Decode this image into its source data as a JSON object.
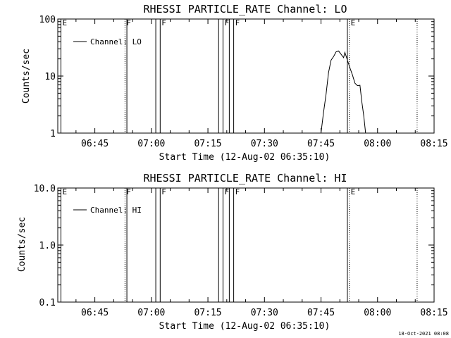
{
  "page": {
    "timestamp": "18-Oct-2021 08:08"
  },
  "chart_data": [
    {
      "type": "line",
      "title": "RHESSI PARTICLE_RATE Channel: LO",
      "xlabel": "Start Time (12-Aug-02 06:35:10)",
      "ylabel": "Counts/sec",
      "xscale": "time",
      "xlim": [
        "06:35:10",
        "08:15:00"
      ],
      "x_ticks": [
        "06:45",
        "07:00",
        "07:15",
        "07:30",
        "07:45",
        "08:00",
        "08:15"
      ],
      "yscale": "log",
      "ylim": [
        1,
        100
      ],
      "y_ticks": [
        {
          "value": 1,
          "label": "1"
        },
        {
          "value": 10,
          "label": "10"
        },
        {
          "value": 100,
          "label": "100"
        }
      ],
      "legend": {
        "placement": "top-left",
        "entries": [
          "Channel: LO"
        ]
      },
      "grid": false,
      "markers": [
        {
          "time": "06:36:00",
          "label": "E",
          "style": "solid"
        },
        {
          "time": "06:53:00",
          "label": "F",
          "style": "dotted"
        },
        {
          "time": "06:53:30",
          "label": "",
          "style": "solid"
        },
        {
          "time": "07:01:10",
          "label": "",
          "style": "solid"
        },
        {
          "time": "07:02:20",
          "label": "F",
          "style": "solid"
        },
        {
          "time": "07:17:50",
          "label": "",
          "style": "solid"
        },
        {
          "time": "07:19:00",
          "label": "F",
          "style": "solid"
        },
        {
          "time": "07:20:40",
          "label": "",
          "style": "solid"
        },
        {
          "time": "07:21:50",
          "label": "F",
          "style": "solid"
        },
        {
          "time": "07:52:00",
          "label": "",
          "style": "solid"
        },
        {
          "time": "07:52:30",
          "label": "E",
          "style": "dotted"
        },
        {
          "time": "08:10:30",
          "label": "",
          "style": "dotted"
        }
      ],
      "series": [
        {
          "name": "Channel: LO",
          "points": [
            [
              "07:45:00",
              1.0
            ],
            [
              "07:45:40",
              2.3
            ],
            [
              "07:46:20",
              4.8
            ],
            [
              "07:47:00",
              11.5
            ],
            [
              "07:47:40",
              19.0
            ],
            [
              "07:48:20",
              22.0
            ],
            [
              "07:49:00",
              26.5
            ],
            [
              "07:49:40",
              27.5
            ],
            [
              "07:50:20",
              24.0
            ],
            [
              "07:51:00",
              21.0
            ],
            [
              "07:51:20",
              26.0
            ],
            [
              "07:52:00",
              19.0
            ],
            [
              "07:52:40",
              14.0
            ],
            [
              "07:53:20",
              10.5
            ],
            [
              "07:54:00",
              7.5
            ],
            [
              "07:54:40",
              6.8
            ],
            [
              "07:55:20",
              6.9
            ],
            [
              "07:55:50",
              3.5
            ],
            [
              "07:56:20",
              2.0
            ],
            [
              "07:56:50",
              1.0
            ]
          ]
        }
      ]
    },
    {
      "type": "line",
      "title": "RHESSI PARTICLE_RATE Channel: HI",
      "xlabel": "Start Time (12-Aug-02 06:35:10)",
      "ylabel": "Counts/sec",
      "xscale": "time",
      "xlim": [
        "06:35:10",
        "08:15:00"
      ],
      "x_ticks": [
        "06:45",
        "07:00",
        "07:15",
        "07:30",
        "07:45",
        "08:00",
        "08:15"
      ],
      "yscale": "log",
      "ylim": [
        0.1,
        10
      ],
      "y_ticks": [
        {
          "value": 0.1,
          "label": "0.1"
        },
        {
          "value": 1,
          "label": "1.0"
        },
        {
          "value": 10,
          "label": "10.0"
        }
      ],
      "legend": {
        "placement": "top-left",
        "entries": [
          "Channel: HI"
        ]
      },
      "grid": false,
      "markers": [
        {
          "time": "06:36:00",
          "label": "E",
          "style": "solid"
        },
        {
          "time": "06:53:00",
          "label": "F",
          "style": "dotted"
        },
        {
          "time": "06:53:30",
          "label": "",
          "style": "solid"
        },
        {
          "time": "07:01:10",
          "label": "",
          "style": "solid"
        },
        {
          "time": "07:02:20",
          "label": "F",
          "style": "solid"
        },
        {
          "time": "07:17:50",
          "label": "",
          "style": "solid"
        },
        {
          "time": "07:19:00",
          "label": "F",
          "style": "solid"
        },
        {
          "time": "07:20:40",
          "label": "",
          "style": "solid"
        },
        {
          "time": "07:21:50",
          "label": "F",
          "style": "solid"
        },
        {
          "time": "07:52:00",
          "label": "",
          "style": "solid"
        },
        {
          "time": "07:52:30",
          "label": "E",
          "style": "dotted"
        },
        {
          "time": "08:10:30",
          "label": "",
          "style": "dotted"
        }
      ],
      "series": [
        {
          "name": "Channel: HI",
          "points": []
        }
      ]
    }
  ]
}
